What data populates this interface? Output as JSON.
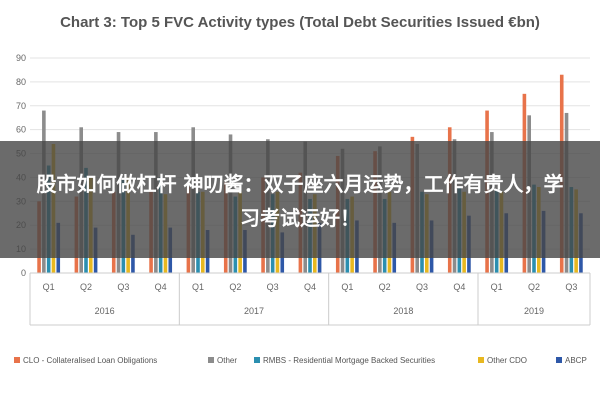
{
  "chart_data": {
    "type": "bar",
    "title": "Chart 3: Top 5 FVC Activity types (Total Debt Securities Issued €bn)",
    "xlabel": "",
    "ylabel": "",
    "ylim": [
      0,
      90
    ],
    "yticks": [
      0,
      10,
      20,
      30,
      40,
      50,
      60,
      70,
      80,
      90
    ],
    "grid": true,
    "legend_position": "bottom",
    "categories": [
      "Q1",
      "Q2",
      "Q3",
      "Q4",
      "Q1",
      "Q2",
      "Q3",
      "Q4",
      "Q1",
      "Q2",
      "Q3",
      "Q4",
      "Q1",
      "Q2",
      "Q3"
    ],
    "year_groups": [
      {
        "label": "2016",
        "count": 4
      },
      {
        "label": "2017",
        "count": 4
      },
      {
        "label": "2018",
        "count": 4
      },
      {
        "label": "2019",
        "count": 3
      }
    ],
    "series": [
      {
        "name": "CLO - Collateralised Loan Obligations",
        "color": "#e8734a",
        "values": [
          30,
          32,
          34,
          35,
          36,
          38,
          40,
          42,
          49,
          51,
          57,
          61,
          68,
          75,
          83
        ]
      },
      {
        "name": "Other",
        "color": "#8c8c8c",
        "values": [
          68,
          61,
          59,
          59,
          61,
          58,
          56,
          55,
          52,
          53,
          54,
          56,
          59,
          66,
          67
        ]
      },
      {
        "name": "RMBS - Residential Mortgage Backed Securities",
        "color": "#2b8fb0",
        "values": [
          45,
          44,
          39,
          40,
          34,
          32,
          33,
          31,
          31,
          31,
          34,
          36,
          35,
          37,
          36
        ]
      },
      {
        "name": "Other CDO",
        "color": "#e8b820",
        "values": [
          54,
          40,
          40,
          33,
          34,
          34,
          34,
          33,
          32,
          34,
          33,
          34,
          34,
          36,
          35
        ]
      },
      {
        "name": "ABCP",
        "color": "#2e58a8",
        "values": [
          21,
          19,
          16,
          19,
          18,
          18,
          17,
          21,
          22,
          21,
          22,
          24,
          25,
          26,
          25
        ]
      }
    ]
  },
  "overlay": {
    "text": "股市如何做杠杆 神叨酱：双子座六月运势，工作有贵人，学习考试运好！"
  }
}
